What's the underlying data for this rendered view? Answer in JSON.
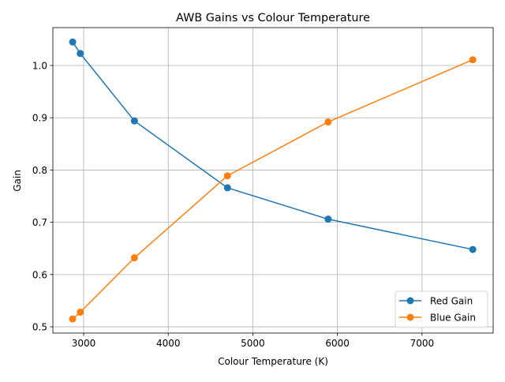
{
  "chart_data": {
    "type": "line",
    "title": "AWB Gains vs Colour Temperature",
    "xlabel": "Colour Temperature (K)",
    "ylabel": "Gain",
    "xlim": [
      2636,
      7841
    ],
    "ylim": [
      0.488,
      1.0725
    ],
    "xticks": [
      3000,
      4000,
      5000,
      6000,
      7000
    ],
    "xtick_labels": [
      "3000",
      "4000",
      "5000",
      "6000",
      "7000"
    ],
    "yticks": [
      0.5,
      0.6,
      0.7,
      0.8,
      0.9,
      1.0
    ],
    "ytick_labels": [
      "0.5",
      "0.6",
      "0.7",
      "0.8",
      "0.9",
      "1.0"
    ],
    "grid": true,
    "legend_position": "lower-right",
    "x": [
      2870,
      2960,
      3600,
      4700,
      5890,
      7600
    ],
    "series": [
      {
        "name": "Red Gain",
        "color": "#1f77b4",
        "values": [
          1.045,
          1.023,
          0.894,
          0.766,
          0.706,
          0.648
        ]
      },
      {
        "name": "Blue Gain",
        "color": "#ff7f0e",
        "values": [
          0.515,
          0.528,
          0.632,
          0.789,
          0.892,
          1.011
        ]
      }
    ]
  }
}
